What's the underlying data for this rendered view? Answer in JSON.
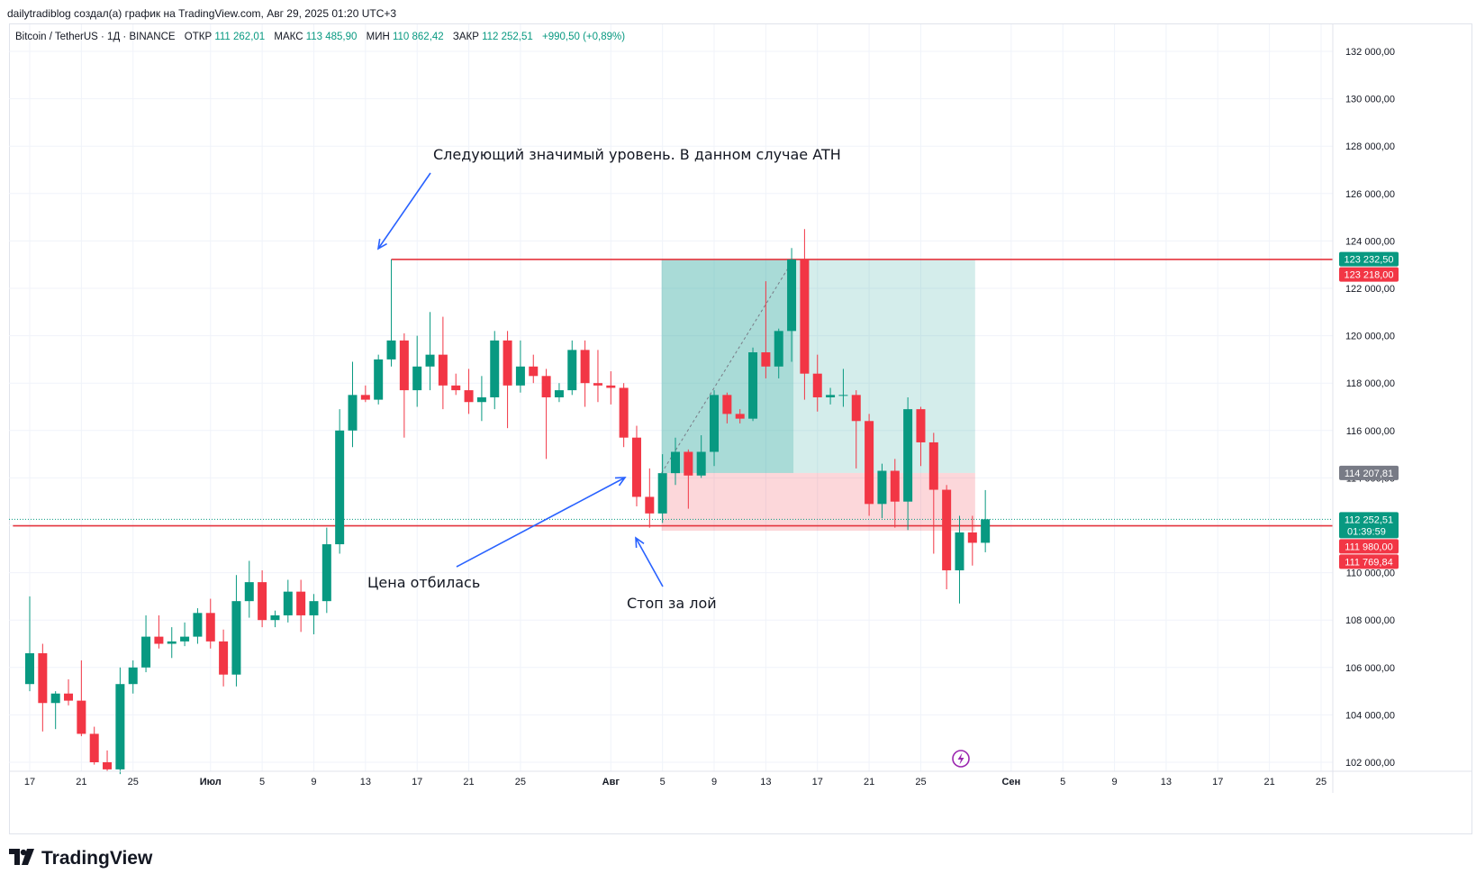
{
  "header": {
    "attribution": "dailytradiblog создал(а) график на TradingView.com, Авг 29, 2025 01:20 UTC+3"
  },
  "symbol_line": {
    "name": "Bitcoin / TetherUS · 1Д · BINANCE",
    "open_label": "ОТКР",
    "open_value": "111 262,01",
    "high_label": "МАКС",
    "high_value": "113 485,90",
    "low_label": "МИН",
    "low_value": "110 862,42",
    "close_label": "ЗАКР",
    "close_value": "112 252,51",
    "change": "+990,50 (+0,89%)"
  },
  "footer": {
    "brand": "TradingView"
  },
  "colors": {
    "up": "#089981",
    "down": "#f23645",
    "level_line": "#e5343d",
    "arrow": "#2962ff",
    "profit_zone": "#26a69a",
    "loss_zone": "#f23645",
    "axis_text": "#131722"
  },
  "chart_data": {
    "type": "candlestick",
    "title": "Bitcoin / TetherUS · 1Д · BINANCE",
    "ylim": [
      101500,
      133000
    ],
    "y_ticks": [
      102000,
      104000,
      106000,
      108000,
      110000,
      112000,
      114000,
      116000,
      118000,
      120000,
      122000,
      124000,
      126000,
      128000,
      130000,
      132000
    ],
    "y_tick_labels": [
      "102 000,00",
      "104 000,00",
      "106 000,00",
      "108 000,00",
      "110 000,00",
      "112 000,00",
      "114 000,00",
      "116 000,00",
      "118 000,00",
      "120 000,00",
      "122 000,00",
      "124 000,00",
      "126 000,00",
      "128 000,00",
      "130 000,00",
      "132 000,00"
    ],
    "x_ticks": [
      {
        "day": 0,
        "label": "17"
      },
      {
        "day": 4,
        "label": "21"
      },
      {
        "day": 8,
        "label": "25"
      },
      {
        "day": 14,
        "label": "Июл"
      },
      {
        "day": 18,
        "label": "5"
      },
      {
        "day": 22,
        "label": "9"
      },
      {
        "day": 26,
        "label": "13"
      },
      {
        "day": 30,
        "label": "17"
      },
      {
        "day": 34,
        "label": "21"
      },
      {
        "day": 38,
        "label": "25"
      },
      {
        "day": 45,
        "label": "Авг"
      },
      {
        "day": 49,
        "label": "5"
      },
      {
        "day": 53,
        "label": "9"
      },
      {
        "day": 57,
        "label": "13"
      },
      {
        "day": 61,
        "label": "17"
      },
      {
        "day": 65,
        "label": "21"
      },
      {
        "day": 69,
        "label": "25"
      },
      {
        "day": 76,
        "label": "Сен"
      },
      {
        "day": 80,
        "label": "5"
      },
      {
        "day": 84,
        "label": "9"
      },
      {
        "day": 88,
        "label": "13"
      },
      {
        "day": 92,
        "label": "17"
      },
      {
        "day": 96,
        "label": "21"
      },
      {
        "day": 100,
        "label": "25"
      }
    ],
    "x_range_days": [
      -1.3,
      102.5
    ],
    "first_date": "Июн 17",
    "candles": [
      {
        "day": 0,
        "o": 105300,
        "h": 109000,
        "l": 105000,
        "c": 106600
      },
      {
        "day": 1,
        "o": 106600,
        "h": 107000,
        "l": 103300,
        "c": 104500
      },
      {
        "day": 2,
        "o": 104500,
        "h": 105000,
        "l": 103400,
        "c": 104900
      },
      {
        "day": 3,
        "o": 104900,
        "h": 105500,
        "l": 104400,
        "c": 104600
      },
      {
        "day": 4,
        "o": 104600,
        "h": 106300,
        "l": 103100,
        "c": 103200
      },
      {
        "day": 5,
        "o": 103200,
        "h": 103500,
        "l": 101900,
        "c": 102000
      },
      {
        "day": 6,
        "o": 102000,
        "h": 102500,
        "l": 101600,
        "c": 101700
      },
      {
        "day": 7,
        "o": 101700,
        "h": 106000,
        "l": 101500,
        "c": 105300
      },
      {
        "day": 8,
        "o": 105300,
        "h": 106300,
        "l": 104900,
        "c": 106000
      },
      {
        "day": 9,
        "o": 106000,
        "h": 108200,
        "l": 105800,
        "c": 107300
      },
      {
        "day": 10,
        "o": 107300,
        "h": 108200,
        "l": 106800,
        "c": 107000
      },
      {
        "day": 11,
        "o": 107000,
        "h": 107700,
        "l": 106400,
        "c": 107100
      },
      {
        "day": 12,
        "o": 107100,
        "h": 107900,
        "l": 106900,
        "c": 107300
      },
      {
        "day": 13,
        "o": 107300,
        "h": 108500,
        "l": 107000,
        "c": 108300
      },
      {
        "day": 14,
        "o": 108300,
        "h": 108900,
        "l": 106800,
        "c": 107100
      },
      {
        "day": 15,
        "o": 107100,
        "h": 107600,
        "l": 105200,
        "c": 105700
      },
      {
        "day": 16,
        "o": 105700,
        "h": 109900,
        "l": 105200,
        "c": 108800
      },
      {
        "day": 17,
        "o": 108800,
        "h": 110500,
        "l": 108100,
        "c": 109600
      },
      {
        "day": 18,
        "o": 109600,
        "h": 110100,
        "l": 107700,
        "c": 108000
      },
      {
        "day": 19,
        "o": 108000,
        "h": 108400,
        "l": 107700,
        "c": 108200
      },
      {
        "day": 20,
        "o": 108200,
        "h": 109700,
        "l": 107900,
        "c": 109200
      },
      {
        "day": 21,
        "o": 109200,
        "h": 109700,
        "l": 107500,
        "c": 108200
      },
      {
        "day": 22,
        "o": 108200,
        "h": 109100,
        "l": 107400,
        "c": 108800
      },
      {
        "day": 23,
        "o": 108800,
        "h": 111900,
        "l": 108300,
        "c": 111200
      },
      {
        "day": 24,
        "o": 111200,
        "h": 116900,
        "l": 110800,
        "c": 116000
      },
      {
        "day": 25,
        "o": 116000,
        "h": 118900,
        "l": 115300,
        "c": 117500
      },
      {
        "day": 26,
        "o": 117500,
        "h": 117900,
        "l": 117200,
        "c": 117300
      },
      {
        "day": 27,
        "o": 117300,
        "h": 119200,
        "l": 117100,
        "c": 119000
      },
      {
        "day": 28,
        "o": 119000,
        "h": 123218,
        "l": 118700,
        "c": 119800
      },
      {
        "day": 29,
        "o": 119800,
        "h": 120100,
        "l": 115700,
        "c": 117700
      },
      {
        "day": 30,
        "o": 117700,
        "h": 120000,
        "l": 117000,
        "c": 118700
      },
      {
        "day": 31,
        "o": 118700,
        "h": 121000,
        "l": 117700,
        "c": 119200
      },
      {
        "day": 32,
        "o": 119200,
        "h": 120800,
        "l": 116900,
        "c": 117900
      },
      {
        "day": 33,
        "o": 117900,
        "h": 118400,
        "l": 117500,
        "c": 117700
      },
      {
        "day": 34,
        "o": 117700,
        "h": 118600,
        "l": 116700,
        "c": 117200
      },
      {
        "day": 35,
        "o": 117200,
        "h": 118300,
        "l": 116400,
        "c": 117400
      },
      {
        "day": 36,
        "o": 117400,
        "h": 120200,
        "l": 116900,
        "c": 119800
      },
      {
        "day": 37,
        "o": 119800,
        "h": 120200,
        "l": 116100,
        "c": 117900
      },
      {
        "day": 38,
        "o": 117900,
        "h": 119800,
        "l": 117600,
        "c": 118700
      },
      {
        "day": 39,
        "o": 118700,
        "h": 119200,
        "l": 118000,
        "c": 118300
      },
      {
        "day": 40,
        "o": 118300,
        "h": 118600,
        "l": 114800,
        "c": 117400
      },
      {
        "day": 41,
        "o": 117400,
        "h": 118000,
        "l": 117200,
        "c": 117700
      },
      {
        "day": 42,
        "o": 117700,
        "h": 119800,
        "l": 117500,
        "c": 119400
      },
      {
        "day": 43,
        "o": 119400,
        "h": 119800,
        "l": 117000,
        "c": 118000
      },
      {
        "day": 44,
        "o": 118000,
        "h": 119400,
        "l": 117200,
        "c": 117900
      },
      {
        "day": 45,
        "o": 117900,
        "h": 118500,
        "l": 117100,
        "c": 117800
      },
      {
        "day": 46,
        "o": 117800,
        "h": 118000,
        "l": 115300,
        "c": 115700
      },
      {
        "day": 47,
        "o": 115700,
        "h": 116200,
        "l": 112800,
        "c": 113200
      },
      {
        "day": 48,
        "o": 113200,
        "h": 114400,
        "l": 111900,
        "c": 112500
      },
      {
        "day": 49,
        "o": 112500,
        "h": 115000,
        "l": 112100,
        "c": 114200
      },
      {
        "day": 50,
        "o": 114200,
        "h": 115700,
        "l": 113700,
        "c": 115100
      },
      {
        "day": 51,
        "o": 115100,
        "h": 115200,
        "l": 112700,
        "c": 114100
      },
      {
        "day": 52,
        "o": 114100,
        "h": 115800,
        "l": 114000,
        "c": 115100
      },
      {
        "day": 53,
        "o": 115100,
        "h": 117700,
        "l": 114500,
        "c": 117500
      },
      {
        "day": 54,
        "o": 117500,
        "h": 117600,
        "l": 116300,
        "c": 116700
      },
      {
        "day": 55,
        "o": 116700,
        "h": 116900,
        "l": 116300,
        "c": 116500
      },
      {
        "day": 56,
        "o": 116500,
        "h": 119500,
        "l": 116400,
        "c": 119300
      },
      {
        "day": 57,
        "o": 119300,
        "h": 122300,
        "l": 118200,
        "c": 118700
      },
      {
        "day": 58,
        "o": 118700,
        "h": 120300,
        "l": 118200,
        "c": 120200
      },
      {
        "day": 59,
        "o": 120200,
        "h": 123700,
        "l": 118900,
        "c": 123218
      },
      {
        "day": 60,
        "o": 123218,
        "h": 124500,
        "l": 117300,
        "c": 118400
      },
      {
        "day": 61,
        "o": 118400,
        "h": 119200,
        "l": 116800,
        "c": 117400
      },
      {
        "day": 62,
        "o": 117400,
        "h": 117800,
        "l": 117100,
        "c": 117500
      },
      {
        "day": 63,
        "o": 117500,
        "h": 118600,
        "l": 117000,
        "c": 117500
      },
      {
        "day": 64,
        "o": 117500,
        "h": 117700,
        "l": 114400,
        "c": 116400
      },
      {
        "day": 65,
        "o": 116400,
        "h": 116700,
        "l": 112400,
        "c": 112900
      },
      {
        "day": 66,
        "o": 112900,
        "h": 114600,
        "l": 112300,
        "c": 114300
      },
      {
        "day": 67,
        "o": 114300,
        "h": 114800,
        "l": 111900,
        "c": 113000
      },
      {
        "day": 68,
        "o": 113000,
        "h": 117400,
        "l": 111800,
        "c": 116900
      },
      {
        "day": 69,
        "o": 116900,
        "h": 117000,
        "l": 114500,
        "c": 115500
      },
      {
        "day": 70,
        "o": 115500,
        "h": 115900,
        "l": 110800,
        "c": 113500
      },
      {
        "day": 71,
        "o": 113500,
        "h": 113700,
        "l": 109300,
        "c": 110100
      },
      {
        "day": 72,
        "o": 110100,
        "h": 112400,
        "l": 108700,
        "c": 111700
      },
      {
        "day": 73,
        "o": 111700,
        "h": 112400,
        "l": 110300,
        "c": 111262
      },
      {
        "day": 74,
        "o": 111262,
        "h": 113486,
        "l": 110862,
        "c": 112253
      }
    ],
    "horizontal_levels": [
      {
        "name": "ath-level",
        "value": 123218,
        "from_day": 28
      },
      {
        "name": "support-level",
        "value": 111980,
        "from_day": -1.3
      }
    ],
    "long_position": {
      "entry": 114207.81,
      "target": 123218,
      "stop": 111769.84,
      "from_day": 49,
      "to_day": 73,
      "filled_to_day": 59
    },
    "price_labels": [
      {
        "value": 123232.5,
        "text": "123 232,50",
        "color": "#089981"
      },
      {
        "value": 123218,
        "text": "123 218,00",
        "color": "#f23645"
      },
      {
        "value": 114207.81,
        "text": "114 207,81",
        "color": "#787b86"
      },
      {
        "value": 112252.51,
        "text": "112 252,51",
        "sub": "01:39:59",
        "color": "#089981"
      },
      {
        "value": 111980,
        "text": "111 980,00",
        "color": "#f23645"
      },
      {
        "value": 111769.84,
        "text": "111 769,84",
        "color": "#f23645"
      }
    ],
    "annotations": [
      {
        "name": "annotation-next-level",
        "text": "Следующий значимый уровень. В данном случае ATH"
      },
      {
        "name": "annotation-bounce",
        "text": "Цена отбилась"
      },
      {
        "name": "annotation-stop",
        "text": "Стоп за лой"
      }
    ]
  }
}
